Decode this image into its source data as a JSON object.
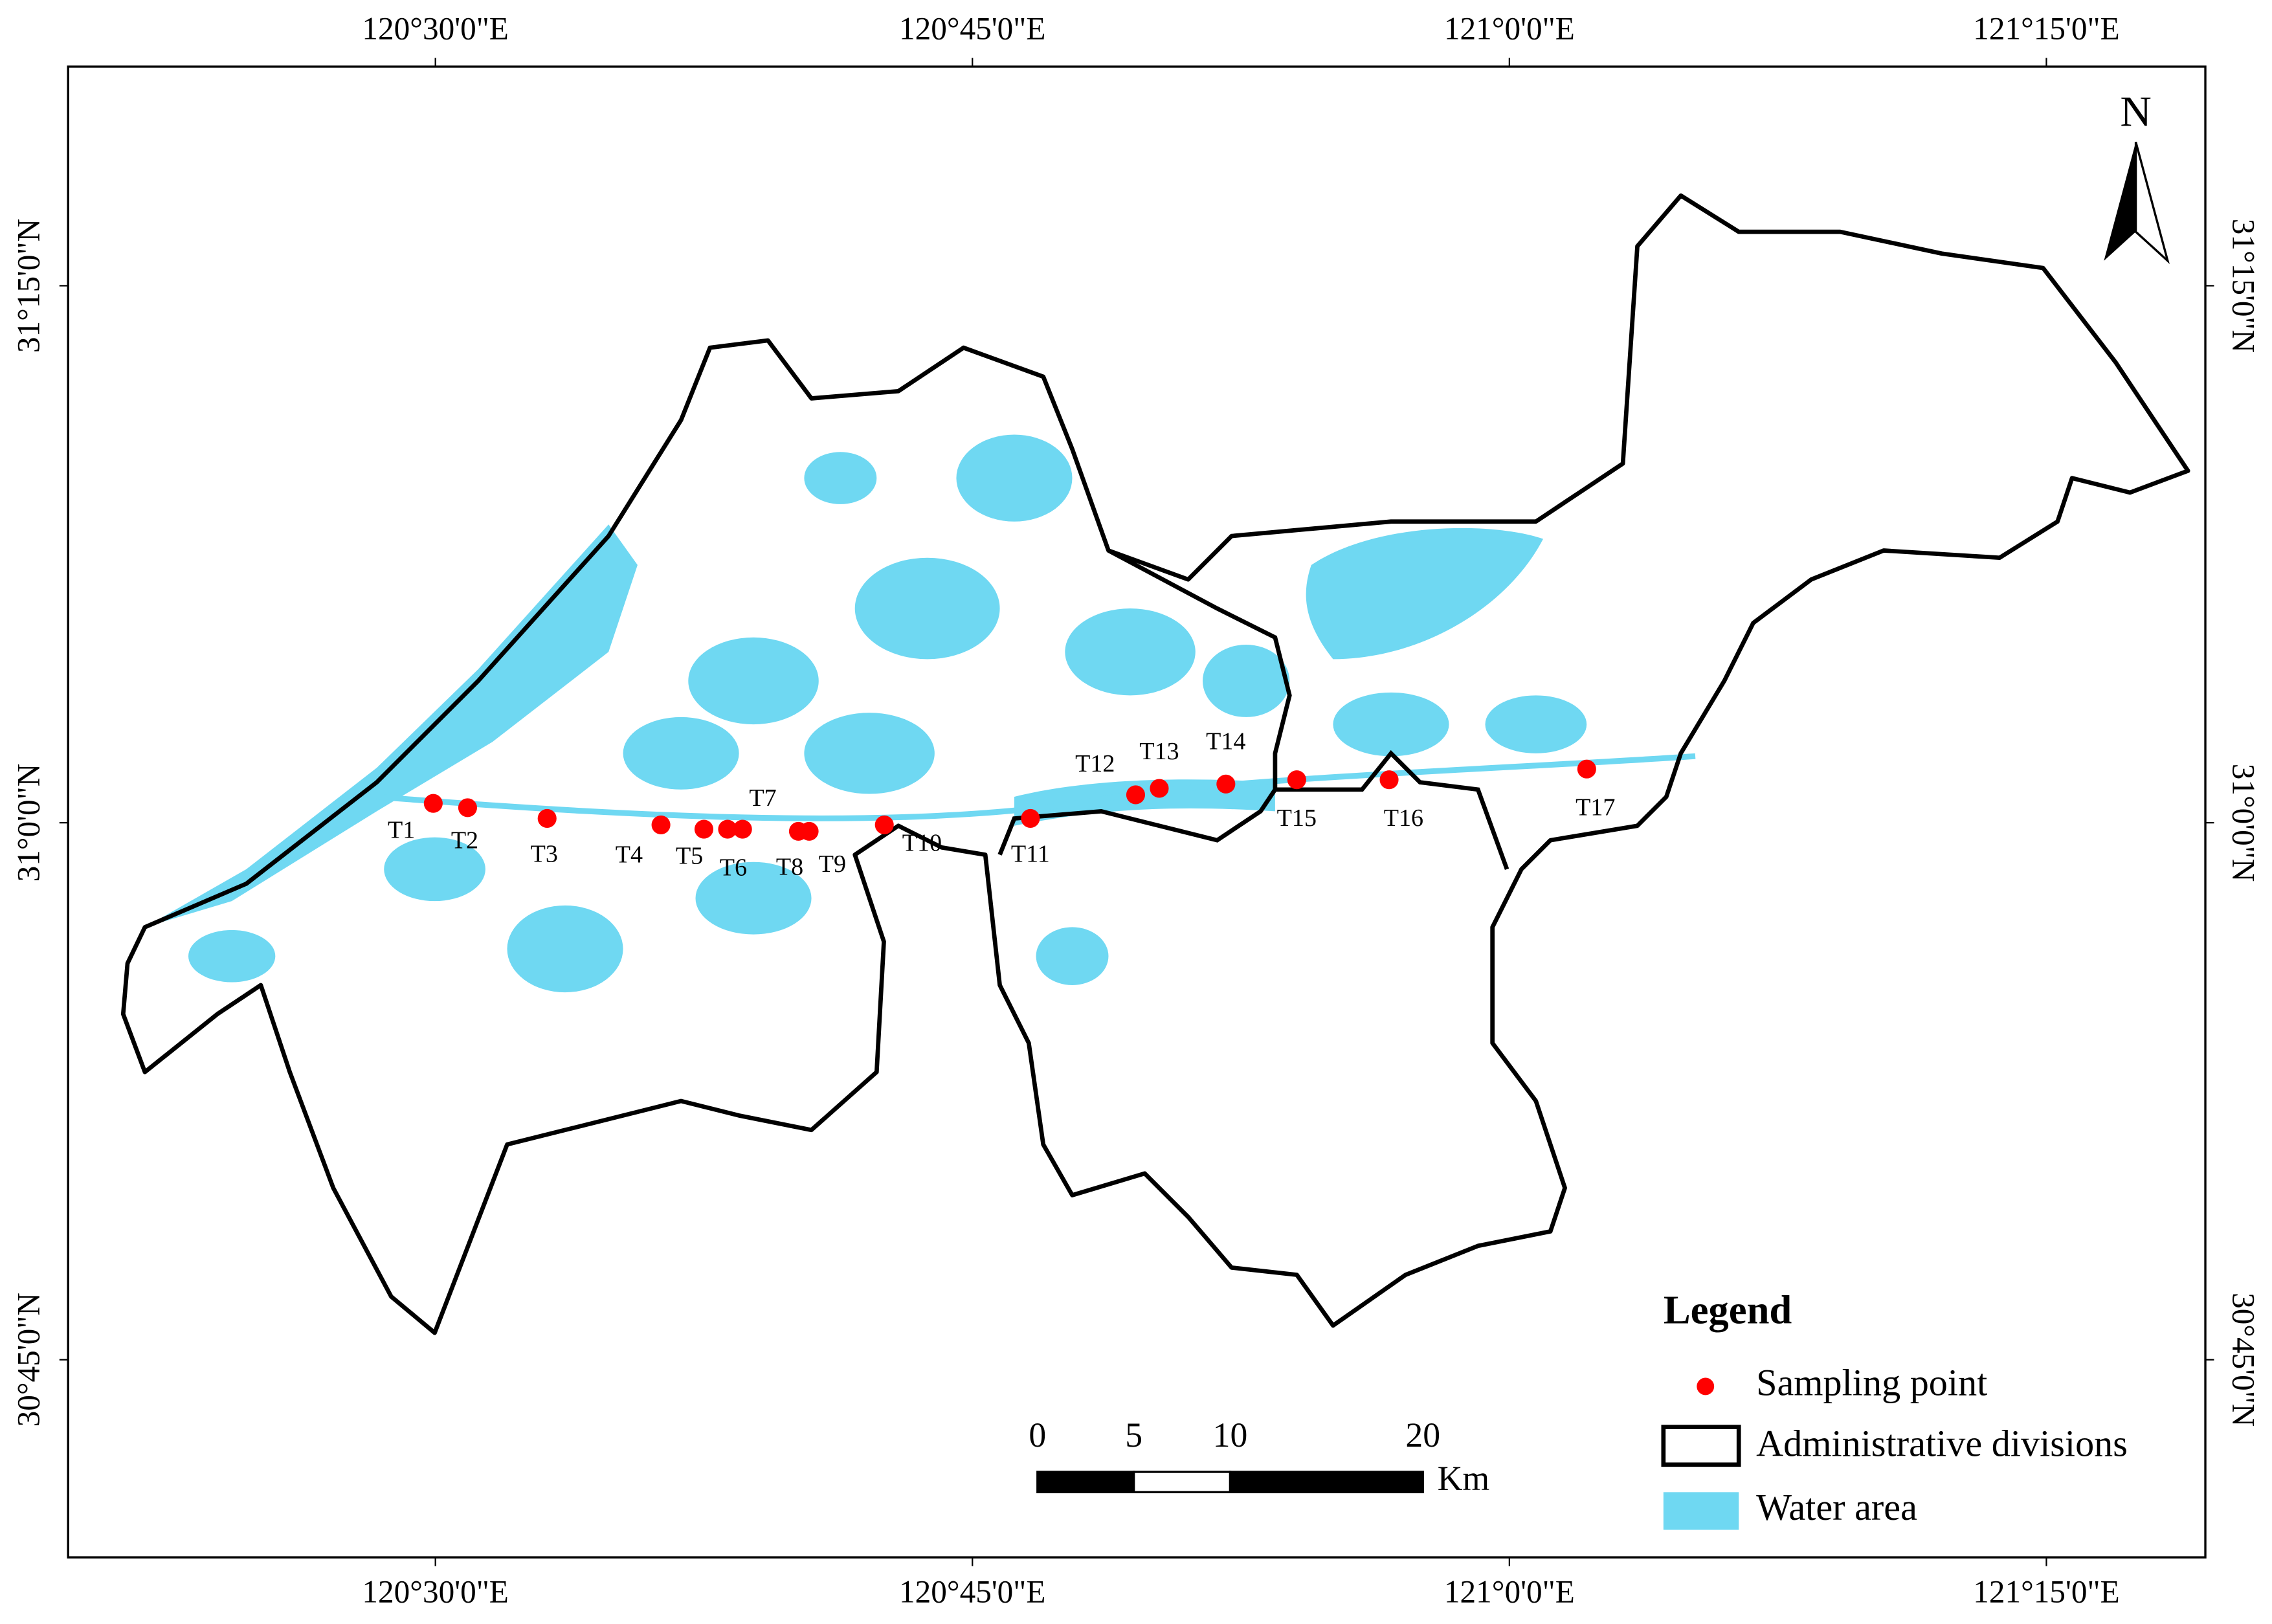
{
  "map": {
    "xlim": [
      120.329,
      121.324
    ],
    "ylim": [
      30.658,
      31.352
    ],
    "lon_ticks": [
      {
        "value": 120.5,
        "label": "120°30'0\"E"
      },
      {
        "value": 120.75,
        "label": "120°45'0\"E"
      },
      {
        "value": 121.0,
        "label": "121°0'0\"E"
      },
      {
        "value": 121.25,
        "label": "121°15'0\"E"
      }
    ],
    "lat_ticks": [
      {
        "value": 31.25,
        "label": "31°15'0\"N"
      },
      {
        "value": 31.0,
        "label": "31°0'0\"N"
      },
      {
        "value": 30.75,
        "label": "30°45'0\"N"
      }
    ],
    "north": "N",
    "point_color": "#ff0000",
    "water_color": "#6fd8f2",
    "points": [
      {
        "label": "T1",
        "lon": 120.499,
        "lat": 31.009
      },
      {
        "label": "T2",
        "lon": 120.515,
        "lat": 31.007
      },
      {
        "label": "T3",
        "lon": 120.552,
        "lat": 31.002
      },
      {
        "label": "T4",
        "lon": 120.605,
        "lat": 30.999
      },
      {
        "label": "T5",
        "lon": 120.625,
        "lat": 30.997
      },
      {
        "label": "T6",
        "lon": 120.636,
        "lat": 30.997
      },
      {
        "label": "T7",
        "lon": 120.643,
        "lat": 30.997
      },
      {
        "label": "T8",
        "lon": 120.669,
        "lat": 30.996
      },
      {
        "label": "T9",
        "lon": 120.674,
        "lat": 30.996
      },
      {
        "label": "T10",
        "lon": 120.709,
        "lat": 30.999
      },
      {
        "label": "T11",
        "lon": 120.777,
        "lat": 31.002
      },
      {
        "label": "T12",
        "lon": 120.826,
        "lat": 31.013
      },
      {
        "label": "T13",
        "lon": 120.837,
        "lat": 31.016
      },
      {
        "label": "T14",
        "lon": 120.868,
        "lat": 31.018
      },
      {
        "label": "T15",
        "lon": 120.901,
        "lat": 31.02
      },
      {
        "label": "T16",
        "lon": 120.944,
        "lat": 31.02
      },
      {
        "label": "T17",
        "lon": 121.036,
        "lat": 31.025
      }
    ],
    "scale_bar": {
      "ticks": [
        0,
        5,
        10,
        20
      ],
      "unit": "Km"
    },
    "legend": {
      "title": "Legend",
      "items": [
        "Sampling point",
        "Administrative divisions",
        "Water area"
      ]
    }
  }
}
